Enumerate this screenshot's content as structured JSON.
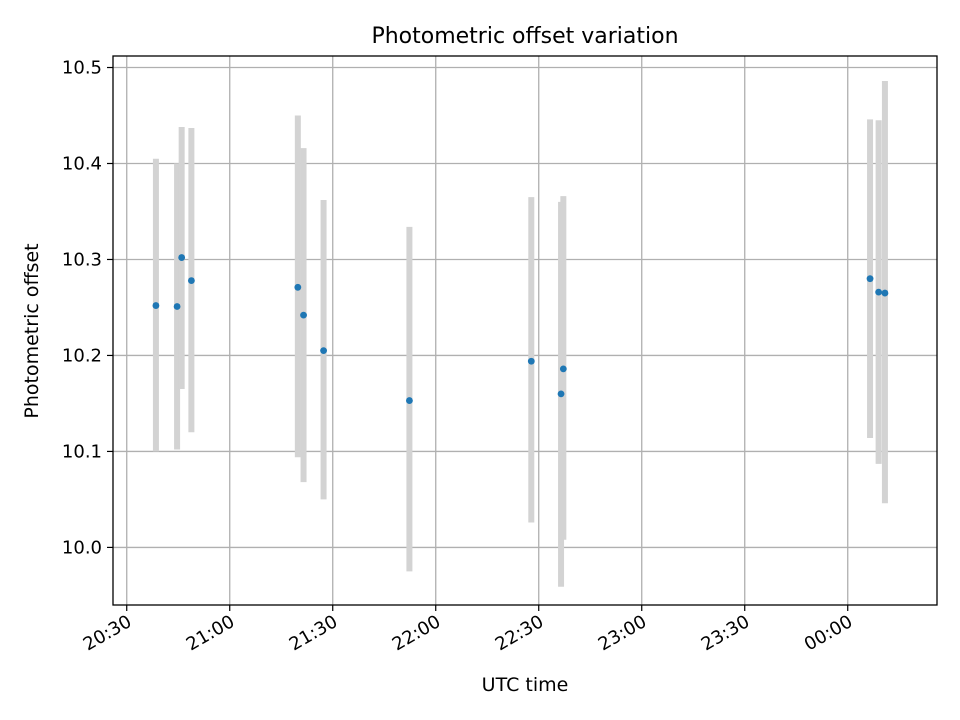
{
  "chart_data": {
    "type": "scatter",
    "title": "Photometric offset variation",
    "xlabel": "UTC time",
    "ylabel": "Photometric offset",
    "grid": true,
    "xlim": [
      "20:26",
      "00:26"
    ],
    "ylim": [
      9.94,
      10.512
    ],
    "x_ticks": [
      "20:30",
      "21:00",
      "21:30",
      "22:00",
      "22:30",
      "23:00",
      "23:30",
      "00:00"
    ],
    "y_ticks": [
      "10.0",
      "10.1",
      "10.2",
      "10.3",
      "10.4",
      "10.5"
    ],
    "marker_color": "#1f77b4",
    "errorbar_color": "#d3d3d3",
    "points": [
      {
        "time": "20:38:30",
        "y": 10.252,
        "ylow": 10.1,
        "yhigh": 10.405
      },
      {
        "time": "20:44:40",
        "y": 10.251,
        "ylow": 10.102,
        "yhigh": 10.4
      },
      {
        "time": "20:46:00",
        "y": 10.302,
        "ylow": 10.165,
        "yhigh": 10.438
      },
      {
        "time": "20:48:50",
        "y": 10.278,
        "ylow": 10.12,
        "yhigh": 10.437
      },
      {
        "time": "21:19:50",
        "y": 10.271,
        "ylow": 10.094,
        "yhigh": 10.45
      },
      {
        "time": "21:21:30",
        "y": 10.242,
        "ylow": 10.068,
        "yhigh": 10.416
      },
      {
        "time": "21:27:20",
        "y": 10.205,
        "ylow": 10.05,
        "yhigh": 10.362
      },
      {
        "time": "21:52:20",
        "y": 10.153,
        "ylow": 9.975,
        "yhigh": 10.334
      },
      {
        "time": "22:27:50",
        "y": 10.194,
        "ylow": 10.026,
        "yhigh": 10.365
      },
      {
        "time": "22:36:30",
        "y": 10.16,
        "ylow": 9.959,
        "yhigh": 10.36
      },
      {
        "time": "22:37:10",
        "y": 10.186,
        "ylow": 10.008,
        "yhigh": 10.366
      },
      {
        "time": "00:06:30",
        "y": 10.28,
        "ylow": 10.114,
        "yhigh": 10.446
      },
      {
        "time": "00:09:00",
        "y": 10.266,
        "ylow": 10.087,
        "yhigh": 10.445
      },
      {
        "time": "00:10:50",
        "y": 10.265,
        "ylow": 10.046,
        "yhigh": 10.486
      }
    ]
  }
}
